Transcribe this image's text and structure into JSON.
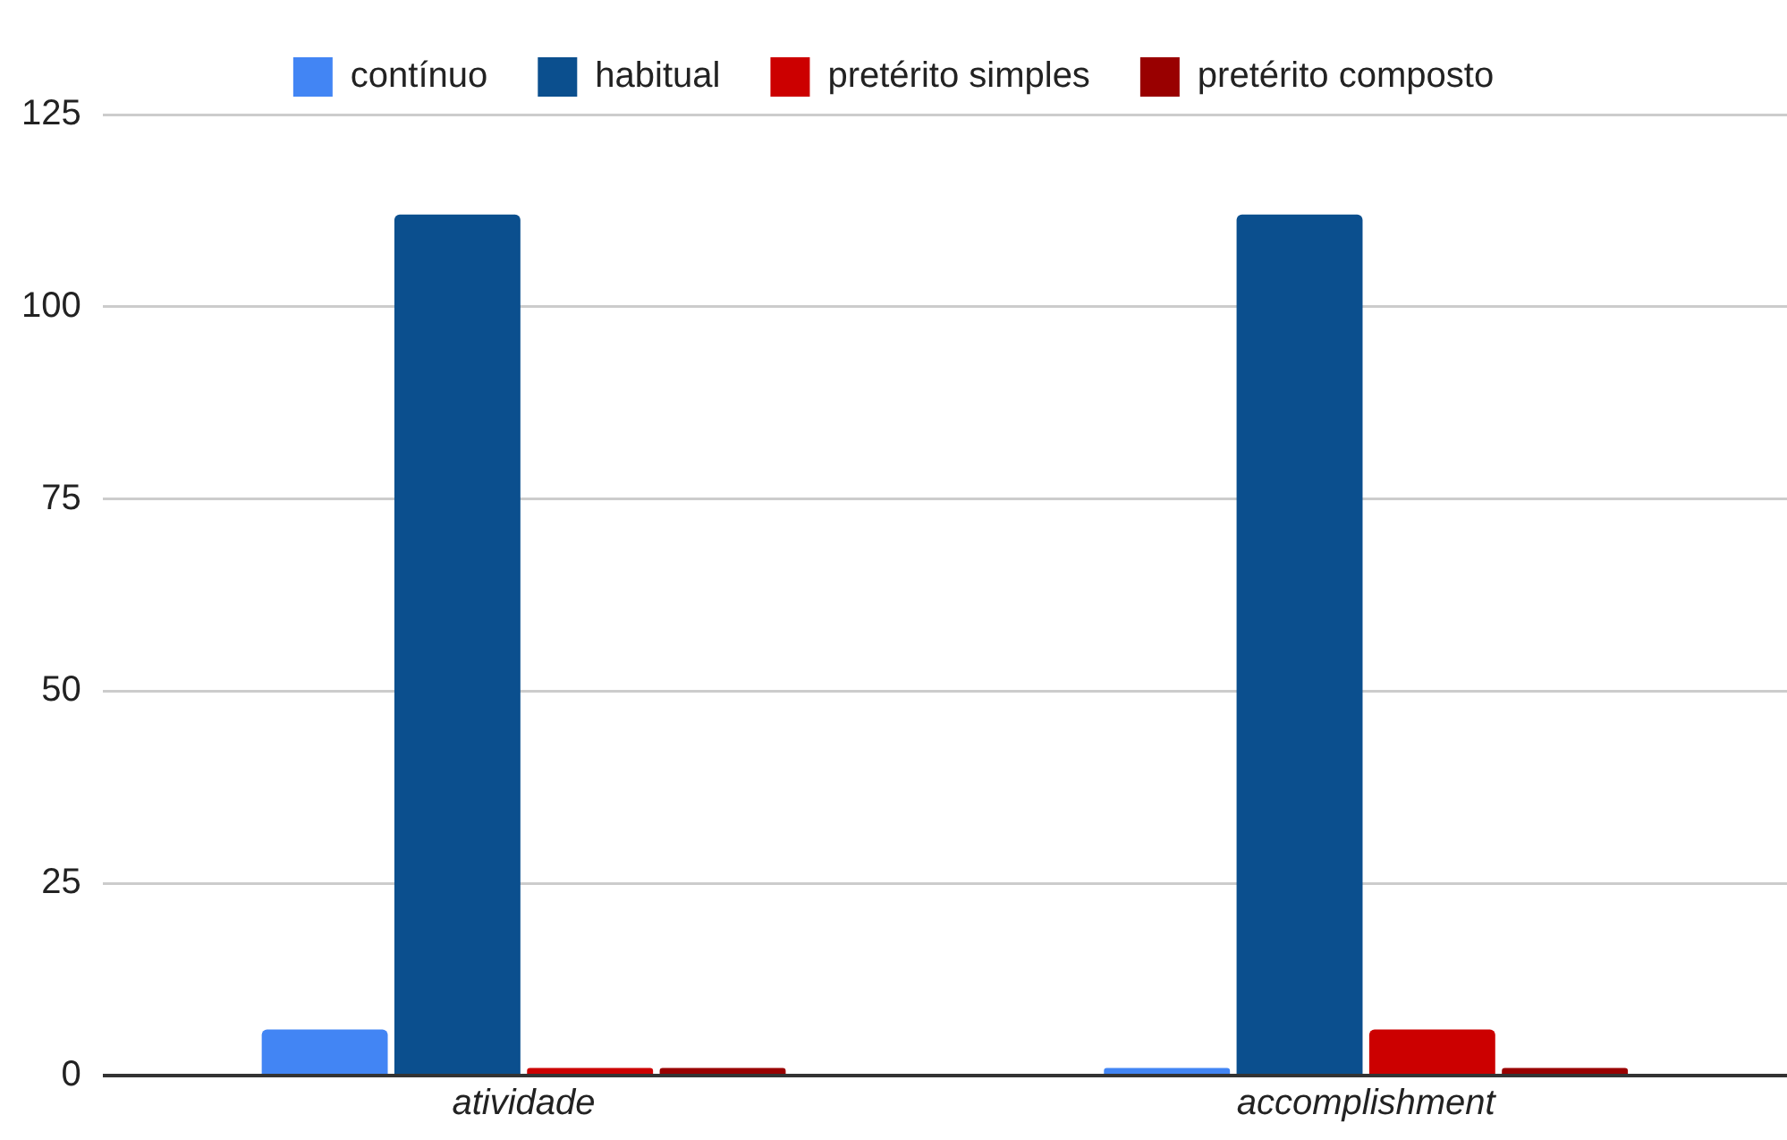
{
  "chart_data": {
    "type": "bar",
    "categories": [
      "atividade",
      "accomplishment"
    ],
    "series": [
      {
        "name": "contínuo",
        "color": "#4285f4",
        "values": [
          6,
          1
        ]
      },
      {
        "name": "habitual",
        "color": "#0b4f8e",
        "values": [
          112,
          112
        ]
      },
      {
        "name": "pretérito simples",
        "color": "#cc0000",
        "values": [
          1,
          6
        ]
      },
      {
        "name": "pretérito composto",
        "color": "#990000",
        "values": [
          1,
          1
        ]
      }
    ],
    "ylim": [
      0,
      125
    ],
    "yticks": [
      0,
      25,
      50,
      75,
      100,
      125
    ],
    "grid": "y",
    "legend": "top"
  }
}
